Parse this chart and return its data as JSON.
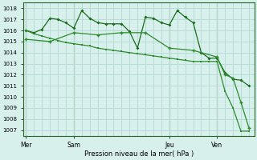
{
  "title": "",
  "xlabel": "Pression niveau de la mer( hPa )",
  "ylabel": "",
  "bg_color": "#d8f0ec",
  "plot_bg_color": "#d8f0ec",
  "grid_color": "#b8dcd8",
  "line_color1": "#1a6b1a",
  "line_color2": "#2d8b2d",
  "line_color3": "#2d8b2d",
  "ylim": [
    1006.5,
    1018.5
  ],
  "yticks": [
    1007,
    1008,
    1009,
    1010,
    1011,
    1012,
    1013,
    1014,
    1015,
    1016,
    1017,
    1018
  ],
  "day_labels": [
    "Mer",
    "Sam",
    "Jeu",
    "Ven"
  ],
  "day_positions": [
    0,
    9,
    27,
    36
  ],
  "vline_positions": [
    0,
    9,
    27,
    36
  ],
  "xlim": [
    -0.5,
    43
  ],
  "series1_x": [
    0,
    1.5,
    3,
    4.5,
    6,
    7.5,
    9,
    10.5,
    12,
    13.5,
    15,
    16.5,
    18,
    19.5,
    21,
    22.5,
    24,
    25.5,
    27,
    28.5,
    30,
    31.5,
    33,
    34.5,
    36,
    37.5,
    39,
    40.5,
    42
  ],
  "series1_y": [
    1016.0,
    1015.8,
    1016.1,
    1017.1,
    1017.0,
    1016.7,
    1016.2,
    1017.8,
    1017.1,
    1016.7,
    1016.6,
    1016.6,
    1016.6,
    1015.9,
    1014.4,
    1017.2,
    1017.1,
    1016.7,
    1016.5,
    1017.8,
    1017.2,
    1016.7,
    1014.0,
    1013.5,
    1013.5,
    1012.2,
    1011.6,
    1011.5,
    1011.0
  ],
  "series2_x": [
    0,
    1.5,
    3,
    4.5,
    6,
    7.5,
    9,
    10.5,
    12,
    13.5,
    15,
    16.5,
    18,
    19.5,
    21,
    22.5,
    24,
    25.5,
    27,
    28.5,
    30,
    31.5,
    33,
    34.5,
    36,
    37.5,
    39,
    40.5,
    42
  ],
  "series2_y": [
    1016.0,
    1015.7,
    1015.5,
    1015.3,
    1015.1,
    1014.9,
    1014.8,
    1014.7,
    1014.6,
    1014.4,
    1014.3,
    1014.2,
    1014.1,
    1014.0,
    1013.9,
    1013.8,
    1013.7,
    1013.6,
    1013.5,
    1013.4,
    1013.3,
    1013.2,
    1013.2,
    1013.2,
    1013.2,
    1010.5,
    1009.0,
    1006.9,
    1006.9
  ],
  "series3_x": [
    0,
    4.5,
    9,
    13.5,
    18,
    22.5,
    27,
    31.5,
    36,
    37.5,
    39,
    40.5,
    42
  ],
  "series3_y": [
    1015.2,
    1015.0,
    1015.8,
    1015.6,
    1015.8,
    1015.8,
    1014.4,
    1014.2,
    1013.6,
    1012.0,
    1011.7,
    1009.5,
    1007.2
  ]
}
